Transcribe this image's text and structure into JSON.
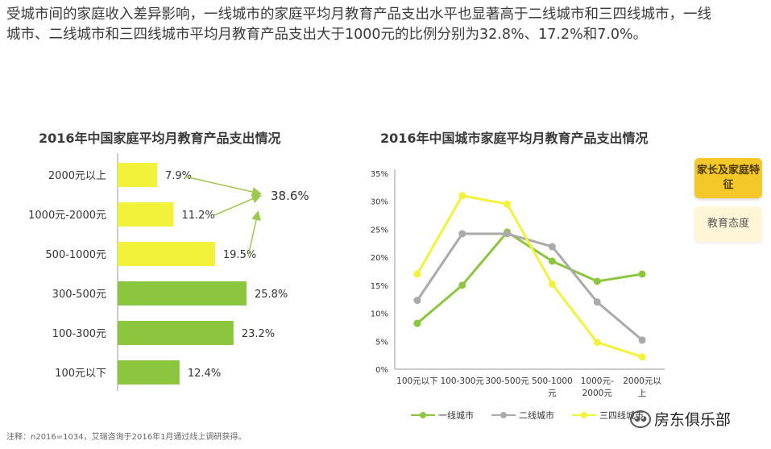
{
  "intro_text": "受城市间的家庭收入差异影响，一线城市的家庭平均月教育产品支出水平也显著高于二线城市和三四线城市，一线城市、二线城市和三四线城市平均月教育产品支出大于1000元的比例分别为32.8%、17.2%和7.0%。",
  "note": "注释：n2016=1034，艾瑞咨询于2016年1月通过线上调研获得。",
  "side_buttons": {
    "family": "家长及家庭特征",
    "attitude": "教育态度"
  },
  "watermark": "房东俱乐部",
  "colors": {
    "yellow": "#f2f23a",
    "green": "#8cc63f",
    "gray": "#aaaaaa",
    "arrow": "#9bc94c"
  },
  "chart_data": [
    {
      "type": "bar",
      "orientation": "horizontal",
      "title": "2016年中国家庭平均月教育产品支出情况",
      "categories": [
        "2000元以上",
        "1000元-2000元",
        "500-1000元",
        "300-500元",
        "100-300元",
        "100元以下"
      ],
      "values": [
        7.9,
        11.2,
        19.5,
        25.8,
        23.2,
        12.4
      ],
      "labels": [
        "7.9%",
        "11.2%",
        "19.5%",
        "25.8%",
        "23.2%",
        "12.4%"
      ],
      "bar_colors": [
        "yellow",
        "yellow",
        "yellow",
        "green",
        "green",
        "green"
      ],
      "annotation": "38.6%"
    },
    {
      "type": "line",
      "title": "2016年中国城市家庭平均月教育产品支出情况",
      "categories": [
        "100元以下",
        "100-300元",
        "300-500元",
        "500-1000元",
        "1000元-2000元",
        "2000元以上"
      ],
      "ylim": [
        0,
        35
      ],
      "yticks": [
        "0%",
        "5%",
        "10%",
        "15%",
        "20%",
        "25%",
        "30%",
        "35%"
      ],
      "series": [
        {
          "name": "一线城市",
          "color": "green",
          "values": [
            8.2,
            15.0,
            24.5,
            19.3,
            15.7,
            17.0
          ]
        },
        {
          "name": "二线城市",
          "color": "gray",
          "values": [
            12.3,
            24.2,
            24.2,
            21.9,
            12.0,
            5.2
          ]
        },
        {
          "name": "三四线城市",
          "color": "yellow",
          "values": [
            17.0,
            31.0,
            29.5,
            15.2,
            4.8,
            2.2
          ]
        }
      ]
    }
  ]
}
